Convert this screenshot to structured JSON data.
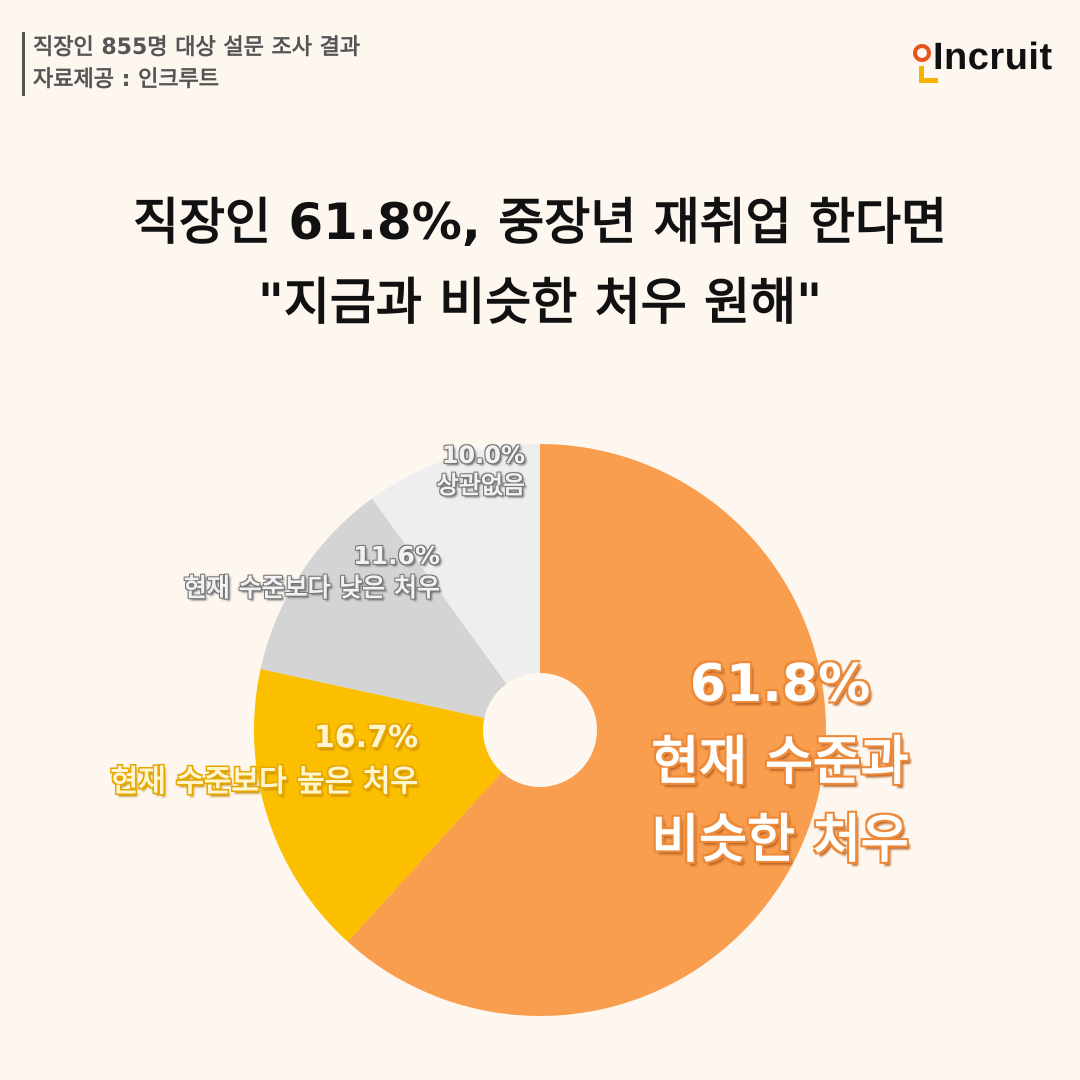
{
  "header": {
    "survey_line": "직장인 855명 대상 설문 조사 결과",
    "source_line": "자료제공 : 인크루트",
    "logo_text": "Incruit"
  },
  "title": {
    "line1": "직장인 61.8%, 중장년 재취업 한다면",
    "line2": "\"지금과 비슷한 처우 원해\""
  },
  "colors": {
    "background": "#fdf7f0",
    "orange": "#f99e4e",
    "yellow": "#fcbf00",
    "gray": "#d4d4d4",
    "light_gray": "#eeeeee",
    "logo_ring": "#e8541e",
    "logo_corner": "#f5b400"
  },
  "labels": {
    "same": {
      "pct": "61.8%",
      "line1": "현재 수준과",
      "line2": "비슷한 처우"
    },
    "higher": {
      "pct": "16.7%",
      "text": "현재 수준보다 높은 처우"
    },
    "lower": {
      "pct": "11.6%",
      "text": "현재 수준보다 낮은 처우"
    },
    "none": {
      "pct": "10.0%",
      "text": "상관없음"
    }
  },
  "chart_data": {
    "type": "pie",
    "title": "직장인 61.8%, 중장년 재취업 한다면 \"지금과 비슷한 처우 원해\"",
    "subtitle": "직장인 855명 대상 설문 조사 결과",
    "categories": [
      "현재 수준과 비슷한 처우",
      "현재 수준보다 높은 처우",
      "현재 수준보다 낮은 처우",
      "상관없음"
    ],
    "values": [
      61.8,
      16.7,
      11.6,
      10.0
    ],
    "unit": "%",
    "colors": [
      "#f99e4e",
      "#fcbf00",
      "#d4d4d4",
      "#eeeeee"
    ],
    "donut": true,
    "start_angle": "12 o'clock, clockwise",
    "legend": "none (direct labels)"
  }
}
